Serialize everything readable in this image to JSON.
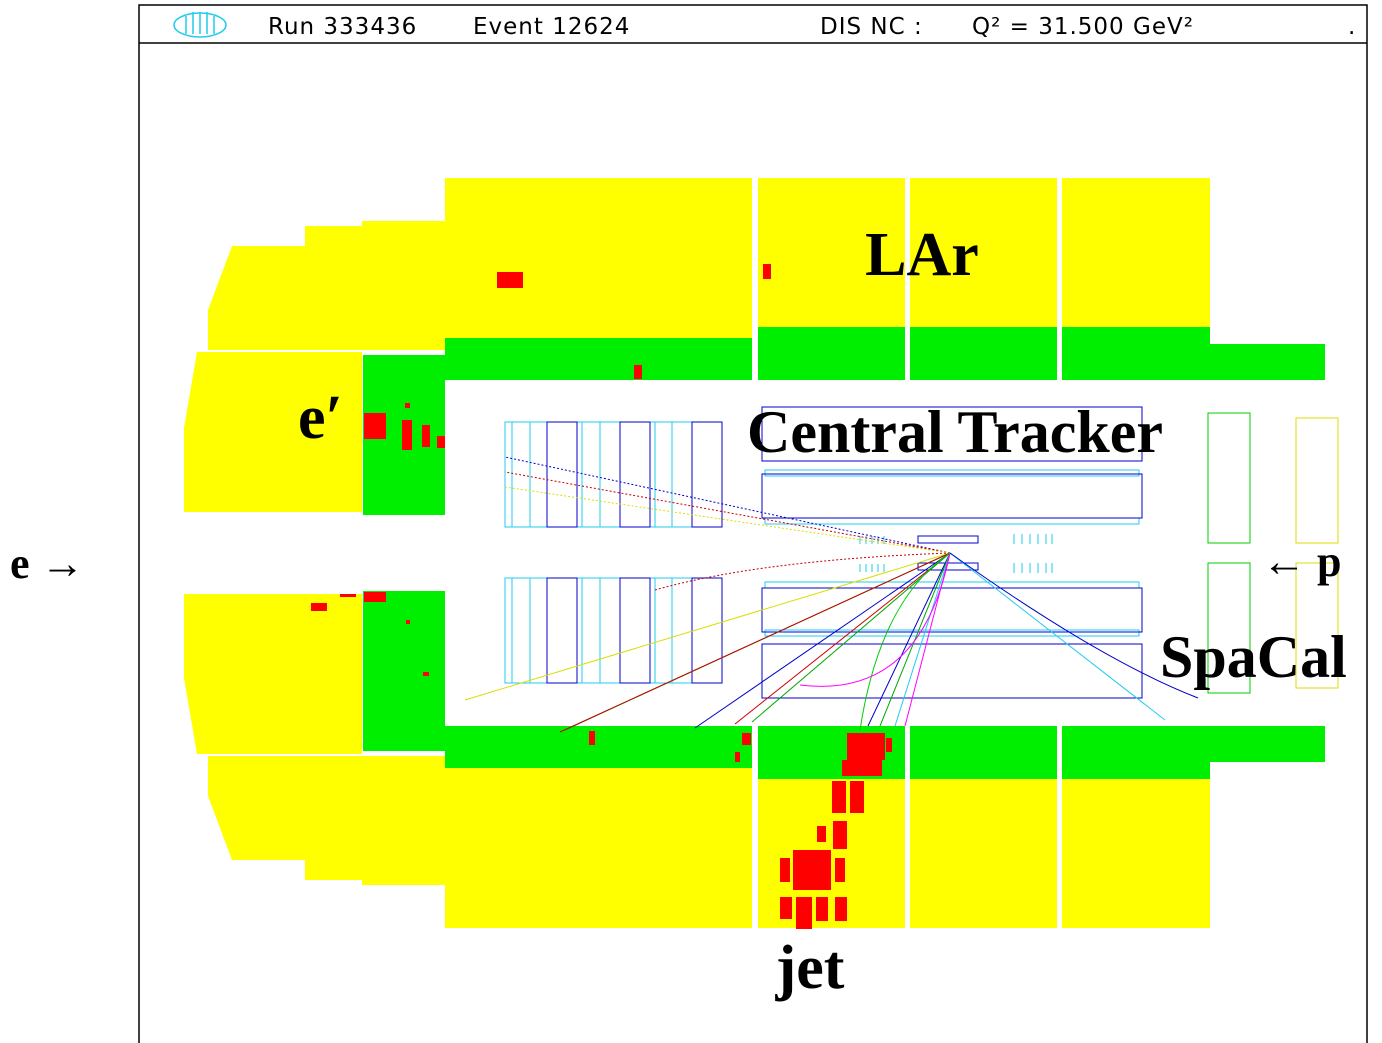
{
  "header": {
    "run": "Run 333436",
    "event": "Event 12624",
    "process": "DIS NC :",
    "q2": "Q² = 31.500 GeV²",
    "dot": "."
  },
  "labels": {
    "lar": "LAr",
    "scattered_electron": "e′",
    "tracker": "Central Tracker",
    "electron_beam": "e →",
    "proton_beam": "← p",
    "spacal": "SpaCal",
    "jet": "jet"
  }
}
